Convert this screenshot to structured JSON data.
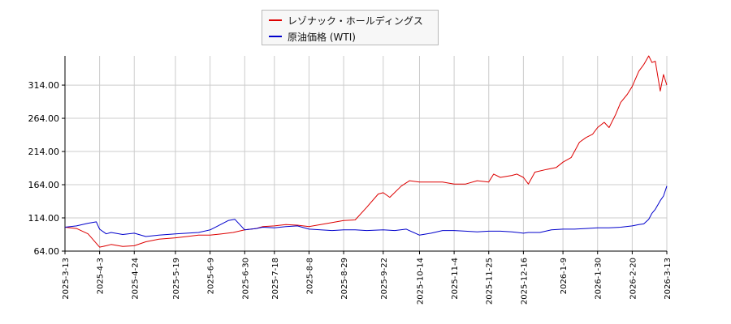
{
  "colors": {
    "series_1": "#dd0000",
    "series_2": "#0000cc",
    "grid": "#cccccc",
    "axis": "#000000"
  },
  "legend": {
    "series_1": "レゾナック・ホールディングス",
    "series_2": "原油価格 (WTI)"
  },
  "chart_data": {
    "type": "line",
    "title": "",
    "xlabel": "",
    "ylabel": "",
    "ylim": [
      64,
      358
    ],
    "y_ticks": [
      "64.00",
      "114.00",
      "164.00",
      "214.00",
      "264.00",
      "314.00"
    ],
    "x_ticks": [
      "2025-3-13",
      "2025-4-3",
      "2025-4-24",
      "2025-5-19",
      "2025-6-9",
      "2025-6-30",
      "2025-7-18",
      "2025-8-8",
      "2025-8-29",
      "2025-9-22",
      "2025-10-14",
      "2025-11-4",
      "2025-11-25",
      "2025-12-16",
      "2026-1-9",
      "2026-1-30",
      "2026-2-20",
      "2026-3-13"
    ],
    "legend_position": "top-center",
    "grid": true,
    "series": [
      {
        "name": "レゾナック・ホールディングス",
        "color": "#dd0000",
        "x": [
          "2025-3-13",
          "2025-3-20",
          "2025-3-27",
          "2025-4-3",
          "2025-4-7",
          "2025-4-10",
          "2025-4-17",
          "2025-4-24",
          "2025-5-1",
          "2025-5-9",
          "2025-5-19",
          "2025-5-26",
          "2025-6-2",
          "2025-6-9",
          "2025-6-16",
          "2025-6-23",
          "2025-6-30",
          "2025-7-7",
          "2025-7-11",
          "2025-7-18",
          "2025-7-25",
          "2025-8-1",
          "2025-8-8",
          "2025-8-15",
          "2025-8-22",
          "2025-8-29",
          "2025-9-5",
          "2025-9-12",
          "2025-9-19",
          "2025-9-22",
          "2025-9-26",
          "2025-10-3",
          "2025-10-8",
          "2025-10-14",
          "2025-10-21",
          "2025-10-28",
          "2025-11-4",
          "2025-11-11",
          "2025-11-18",
          "2025-11-25",
          "2025-11-28",
          "2025-12-2",
          "2025-12-9",
          "2025-12-12",
          "2025-12-16",
          "2025-12-19",
          "2025-12-23",
          "2025-12-30",
          "2026-1-5",
          "2026-1-9",
          "2026-1-14",
          "2026-1-19",
          "2026-1-23",
          "2026-1-27",
          "2026-1-30",
          "2026-2-3",
          "2026-2-6",
          "2026-2-10",
          "2026-2-13",
          "2026-2-17",
          "2026-2-20",
          "2026-2-24",
          "2026-2-27",
          "2026-3-2",
          "2026-3-4",
          "2026-3-6",
          "2026-3-9",
          "2026-3-11",
          "2026-3-13"
        ],
        "values": [
          100,
          98,
          90,
          70,
          72,
          74,
          71,
          72,
          78,
          82,
          84,
          86,
          88,
          88,
          90,
          92,
          96,
          98,
          101,
          102,
          104,
          103,
          101,
          104,
          107,
          110,
          111,
          130,
          150,
          152,
          145,
          162,
          170,
          168,
          168,
          168,
          165,
          165,
          170,
          168,
          180,
          175,
          178,
          180,
          175,
          165,
          183,
          187,
          190,
          198,
          205,
          228,
          235,
          240,
          250,
          258,
          250,
          270,
          288,
          300,
          312,
          335,
          345,
          358,
          348,
          350,
          305,
          330,
          314
        ]
      },
      {
        "name": "原油価格 (WTI)",
        "color": "#0000cc",
        "x": [
          "2025-3-13",
          "2025-3-20",
          "2025-3-27",
          "2025-4-1",
          "2025-4-3",
          "2025-4-7",
          "2025-4-10",
          "2025-4-17",
          "2025-4-24",
          "2025-5-1",
          "2025-5-9",
          "2025-5-19",
          "2025-5-26",
          "2025-6-2",
          "2025-6-9",
          "2025-6-13",
          "2025-6-20",
          "2025-6-24",
          "2025-6-30",
          "2025-7-7",
          "2025-7-11",
          "2025-7-18",
          "2025-7-25",
          "2025-8-1",
          "2025-8-8",
          "2025-8-15",
          "2025-8-22",
          "2025-8-29",
          "2025-9-5",
          "2025-9-12",
          "2025-9-22",
          "2025-9-29",
          "2025-10-6",
          "2025-10-14",
          "2025-10-21",
          "2025-10-28",
          "2025-11-4",
          "2025-11-11",
          "2025-11-18",
          "2025-11-25",
          "2025-12-2",
          "2025-12-9",
          "2025-12-16",
          "2025-12-19",
          "2025-12-26",
          "2026-1-2",
          "2026-1-9",
          "2026-1-16",
          "2026-1-23",
          "2026-1-30",
          "2026-2-6",
          "2026-2-13",
          "2026-2-20",
          "2026-2-24",
          "2026-2-27",
          "2026-3-2",
          "2026-3-4",
          "2026-3-6",
          "2026-3-9",
          "2026-3-11",
          "2026-3-13"
        ],
        "values": [
          100,
          102,
          106,
          108,
          97,
          90,
          92,
          89,
          91,
          86,
          88,
          90,
          91,
          92,
          96,
          101,
          110,
          112,
          96,
          98,
          100,
          99,
          101,
          102,
          97,
          96,
          95,
          96,
          96,
          95,
          96,
          95,
          97,
          88,
          91,
          95,
          95,
          94,
          93,
          94,
          94,
          93,
          91,
          92,
          92,
          96,
          97,
          97,
          98,
          99,
          99,
          100,
          102,
          104,
          105,
          112,
          121,
          127,
          140,
          147,
          162
        ]
      }
    ]
  }
}
